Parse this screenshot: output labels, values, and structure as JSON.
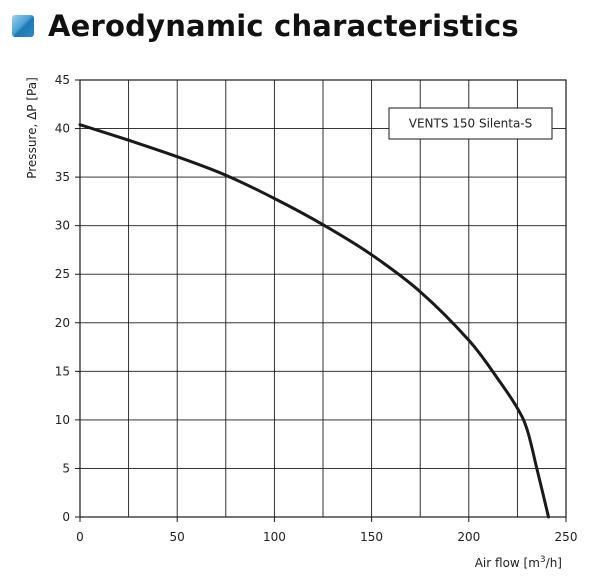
{
  "page": {
    "title": "Aerodynamic characteristics",
    "title_icon": "blue-square-icon",
    "accent_color": "#2a8ccc"
  },
  "chart_data": {
    "type": "line",
    "xlabel": "Air flow [m³/h]",
    "ylabel": "Pressure, ΔP [Pa]",
    "xlim": [
      0,
      250
    ],
    "ylim": [
      0,
      45
    ],
    "xticks": [
      0,
      50,
      100,
      150,
      200,
      250
    ],
    "yticks": [
      0,
      5,
      10,
      15,
      20,
      25,
      30,
      35,
      40,
      45
    ],
    "grid": true,
    "legend_position": "top-right",
    "series": [
      {
        "name": "VENTS 150 Silenta-S",
        "color": "#1a1a1a",
        "x": [
          0,
          25,
          50,
          75,
          100,
          125,
          150,
          175,
          200,
          215,
          225,
          230,
          235,
          241
        ],
        "y": [
          40.4,
          38.8,
          37.1,
          35.2,
          32.8,
          30.1,
          27.0,
          23.2,
          18.2,
          14.2,
          11.2,
          9.0,
          5.0,
          0
        ]
      }
    ]
  }
}
